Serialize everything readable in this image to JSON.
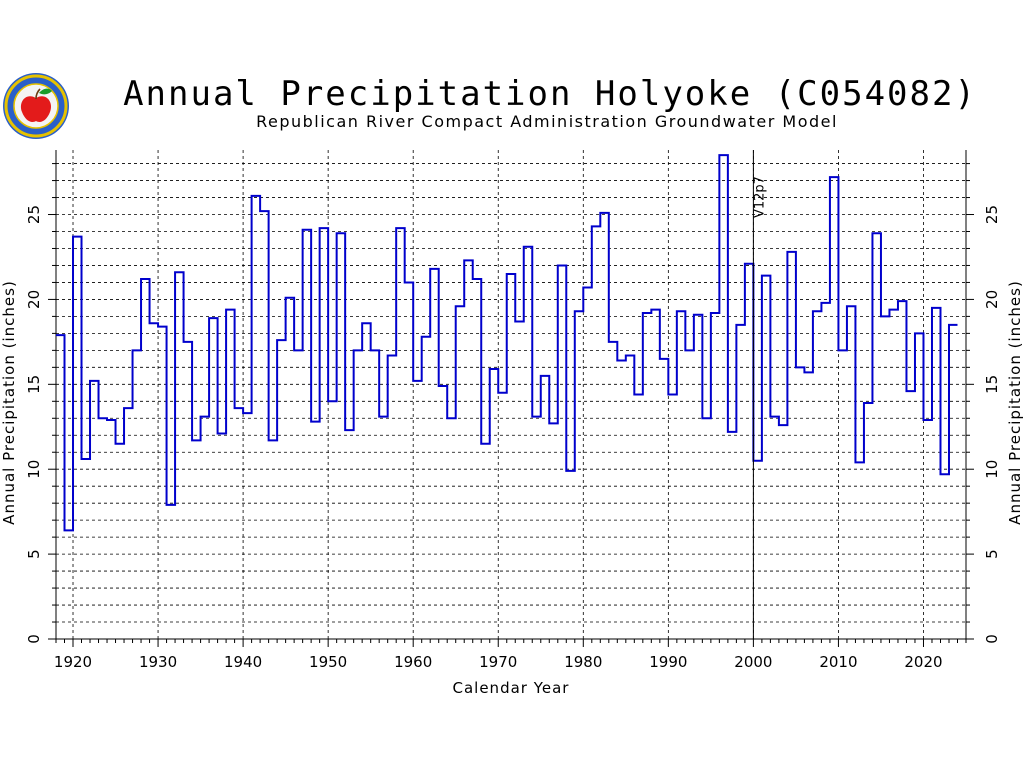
{
  "header": {
    "title": "Annual Precipitation Holyoke (C054082)",
    "subtitle": "Republican River Compact Administration Groundwater Model"
  },
  "logo": {
    "icon": "state-seal-apple-logo",
    "colors": {
      "ring": "#2a5fc8",
      "rim": "#e6c200",
      "apple": "#e31b1b",
      "leaf": "#1c9c2a"
    }
  },
  "colors": {
    "line": "#0000cc",
    "grid": "#000000",
    "axis": "#000000"
  },
  "chart_data": {
    "type": "line",
    "step": true,
    "title": "Annual Precipitation Holyoke (C054082)",
    "subtitle": "Republican River Compact Administration Groundwater Model",
    "xlabel": "Calendar Year",
    "ylabel": "Annual Precipitation (inches)",
    "xlim": [
      1918,
      2025
    ],
    "ylim": [
      0,
      28.8
    ],
    "x_ticks": [
      1920,
      1930,
      1940,
      1950,
      1960,
      1970,
      1980,
      1990,
      2000,
      2010,
      2020
    ],
    "y_ticks": [
      0,
      5,
      10,
      15,
      20,
      25
    ],
    "grid": true,
    "annotation": {
      "text": "V12p7",
      "x": 2000
    },
    "series": [
      {
        "x": [
          1918,
          1919,
          1920,
          1921,
          1922,
          1923,
          1924,
          1925,
          1926,
          1927,
          1928,
          1929,
          1930,
          1931,
          1932,
          1933,
          1934,
          1935,
          1936,
          1937,
          1938,
          1939,
          1940,
          1941,
          1942,
          1943,
          1944,
          1945,
          1946,
          1947,
          1948,
          1949,
          1950,
          1951,
          1952,
          1953,
          1954,
          1955,
          1956,
          1957,
          1958,
          1959,
          1960,
          1961,
          1962,
          1963,
          1964,
          1965,
          1966,
          1967,
          1968,
          1969,
          1970,
          1971,
          1972,
          1973,
          1974,
          1975,
          1976,
          1977,
          1978,
          1979,
          1980,
          1981,
          1982,
          1983,
          1984,
          1985,
          1986,
          1987,
          1988,
          1989,
          1990,
          1991,
          1992,
          1993,
          1994,
          1995,
          1996,
          1997,
          1998,
          1999,
          2000,
          2001,
          2002,
          2003,
          2004,
          2005,
          2006,
          2007,
          2008,
          2009,
          2010,
          2011,
          2012,
          2013,
          2014,
          2015,
          2016,
          2017,
          2018,
          2019,
          2020,
          2021,
          2022,
          2023
        ],
        "values": [
          17.9,
          6.4,
          23.7,
          10.6,
          15.2,
          13.0,
          12.9,
          11.5,
          13.6,
          17.0,
          21.2,
          18.6,
          18.4,
          7.9,
          21.6,
          17.5,
          11.7,
          13.1,
          18.9,
          12.1,
          19.4,
          13.6,
          13.3,
          26.1,
          25.2,
          11.7,
          17.6,
          20.1,
          17.0,
          24.1,
          12.8,
          24.2,
          14.0,
          23.9,
          12.3,
          17.0,
          18.6,
          17.0,
          13.1,
          16.7,
          24.2,
          21.0,
          15.2,
          17.8,
          21.8,
          14.9,
          13.0,
          19.6,
          22.3,
          21.2,
          11.5,
          15.9,
          14.5,
          21.5,
          18.7,
          23.1,
          13.1,
          15.5,
          12.7,
          22.0,
          9.9,
          19.3,
          20.7,
          24.3,
          25.1,
          17.5,
          16.4,
          16.7,
          14.4,
          19.2,
          19.4,
          16.5,
          14.4,
          19.3,
          17.0,
          19.1,
          13.0,
          19.2,
          28.5,
          12.2,
          18.5,
          22.1,
          10.5,
          21.4,
          13.1,
          12.6,
          22.8,
          16.0,
          15.7,
          19.3,
          19.8,
          27.2,
          17.0,
          19.6,
          10.4,
          13.9,
          23.9,
          19.0,
          19.4,
          19.9,
          14.6,
          18.0,
          12.9,
          19.5,
          9.7,
          18.5
        ]
      }
    ]
  }
}
